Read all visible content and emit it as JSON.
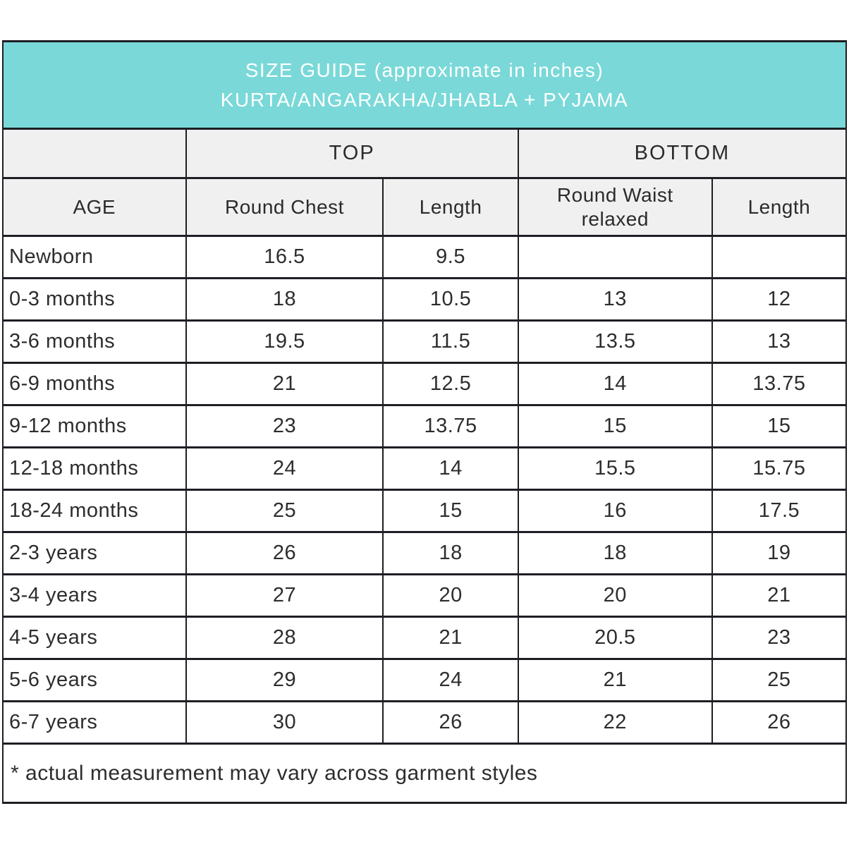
{
  "banner": {
    "line1": "SIZE GUIDE (approximate in inches)",
    "line2": "KURTA/ANGARAKHA/JHABLA + PYJAMA"
  },
  "colors": {
    "banner_bg": "#7ad8d8",
    "banner_text": "#ffffff",
    "header_bg": "#f0f0f0",
    "row_bg": "#ffffff",
    "border": "#1e1e24",
    "text": "#2d2d2d"
  },
  "table": {
    "group_headers": [
      {
        "label": "TOP"
      },
      {
        "label": "BOTTOM"
      }
    ],
    "column_headers": [
      "AGE",
      "Round Chest",
      "Length",
      "Round Waist relaxed",
      "Length"
    ],
    "rows": [
      {
        "age": "Newborn",
        "round_chest": "16.5",
        "top_length": "9.5",
        "round_waist": "",
        "bottom_length": ""
      },
      {
        "age": "0-3 months",
        "round_chest": "18",
        "top_length": "10.5",
        "round_waist": "13",
        "bottom_length": "12"
      },
      {
        "age": "3-6 months",
        "round_chest": "19.5",
        "top_length": "11.5",
        "round_waist": "13.5",
        "bottom_length": "13"
      },
      {
        "age": "6-9 months",
        "round_chest": "21",
        "top_length": "12.5",
        "round_waist": "14",
        "bottom_length": "13.75"
      },
      {
        "age": "9-12 months",
        "round_chest": "23",
        "top_length": "13.75",
        "round_waist": "15",
        "bottom_length": "15"
      },
      {
        "age": "12-18 months",
        "round_chest": "24",
        "top_length": "14",
        "round_waist": "15.5",
        "bottom_length": "15.75"
      },
      {
        "age": "18-24 months",
        "round_chest": "25",
        "top_length": "15",
        "round_waist": "16",
        "bottom_length": "17.5"
      },
      {
        "age": "2-3 years",
        "round_chest": "26",
        "top_length": "18",
        "round_waist": "18",
        "bottom_length": "19"
      },
      {
        "age": "3-4 years",
        "round_chest": "27",
        "top_length": "20",
        "round_waist": "20",
        "bottom_length": "21"
      },
      {
        "age": "4-5 years",
        "round_chest": "28",
        "top_length": "21",
        "round_waist": "20.5",
        "bottom_length": "23"
      },
      {
        "age": "5-6 years",
        "round_chest": "29",
        "top_length": "24",
        "round_waist": "21",
        "bottom_length": "25"
      },
      {
        "age": "6-7 years",
        "round_chest": "30",
        "top_length": "26",
        "round_waist": "22",
        "bottom_length": "26"
      }
    ],
    "footnote": "* actual measurement may vary across garment styles"
  },
  "chart_data": {
    "type": "table",
    "title": "SIZE GUIDE (approximate in inches) KURTA/ANGARAKHA/JHABLA + PYJAMA",
    "units": "inches",
    "column_groups": [
      {
        "label": "",
        "span": 1
      },
      {
        "label": "TOP",
        "span": 2
      },
      {
        "label": "BOTTOM",
        "span": 2
      }
    ],
    "columns": [
      "AGE",
      "TOP Round Chest",
      "TOP Length",
      "BOTTOM Round Waist relaxed",
      "BOTTOM Length"
    ],
    "rows": [
      [
        "Newborn",
        16.5,
        9.5,
        null,
        null
      ],
      [
        "0-3 months",
        18,
        10.5,
        13,
        12
      ],
      [
        "3-6 months",
        19.5,
        11.5,
        13.5,
        13
      ],
      [
        "6-9 months",
        21,
        12.5,
        14,
        13.75
      ],
      [
        "9-12 months",
        23,
        13.75,
        15,
        15
      ],
      [
        "12-18 months",
        24,
        14,
        15.5,
        15.75
      ],
      [
        "18-24 months",
        25,
        15,
        16,
        17.5
      ],
      [
        "2-3 years",
        26,
        18,
        18,
        19
      ],
      [
        "3-4 years",
        27,
        20,
        20,
        21
      ],
      [
        "4-5 years",
        28,
        21,
        20.5,
        23
      ],
      [
        "5-6 years",
        29,
        24,
        21,
        25
      ],
      [
        "6-7 years",
        30,
        26,
        22,
        26
      ]
    ],
    "footnote": "* actual measurement may vary across garment styles"
  }
}
